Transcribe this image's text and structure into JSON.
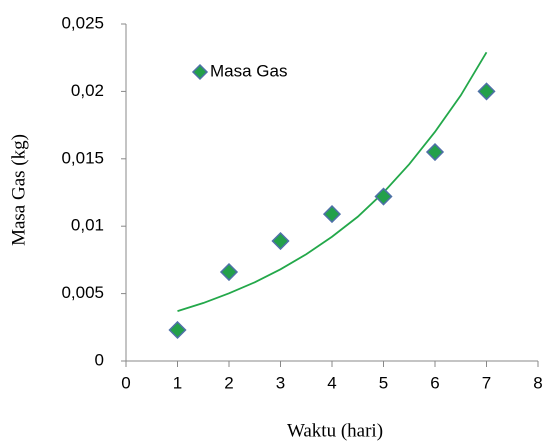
{
  "chart_data": {
    "type": "scatter",
    "x_label": "Waktu (hari)",
    "y_label": "Masa Gas (kg)",
    "series": [
      {
        "name": "Masa Gas",
        "color": "#23a04a",
        "edge_color": "#4f70a8",
        "x": [
          1,
          2,
          3,
          4,
          5,
          6,
          7
        ],
        "values": [
          0.0023,
          0.0066,
          0.0089,
          0.0109,
          0.0122,
          0.0155,
          0.02
        ]
      }
    ],
    "trendline": {
      "color": "#23a84a",
      "x": [
        1,
        1.5,
        2,
        2.5,
        3,
        3.5,
        4,
        4.5,
        5,
        5.5,
        6,
        6.5,
        7
      ],
      "values": [
        0.0037,
        0.0043,
        0.00502,
        0.00584,
        0.0068,
        0.00792,
        0.00922,
        0.0107,
        0.0125,
        0.0146,
        0.017,
        0.0197,
        0.0229
      ]
    },
    "xlim": [
      0,
      8
    ],
    "xticks": [
      0,
      1,
      2,
      3,
      4,
      5,
      6,
      7,
      8
    ],
    "ylim": [
      0,
      0.025
    ],
    "yticks": [
      0,
      {
        "value": 0.005,
        "label": "0,005"
      },
      {
        "value": 0.01,
        "label": "0,01"
      },
      {
        "value": 0.015,
        "label": "0,015"
      },
      {
        "value": 0.02,
        "label": "0,02"
      },
      {
        "value": 0.025,
        "label": "0,025"
      }
    ],
    "legend": "upper left"
  }
}
